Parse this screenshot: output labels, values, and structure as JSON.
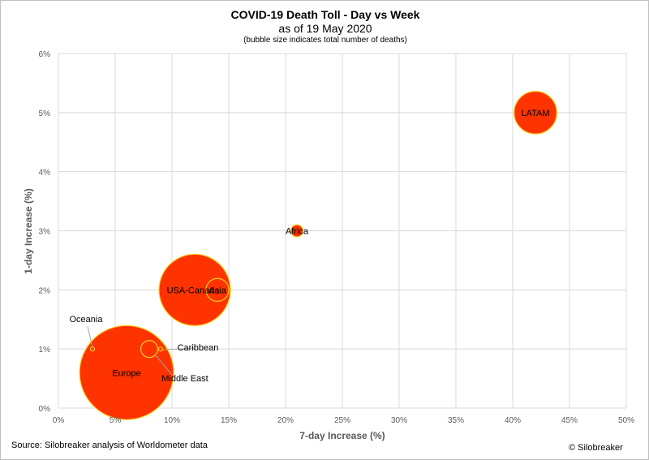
{
  "chart_data": {
    "type": "scatter",
    "title": "COVID-19 Death Toll - Day vs Week",
    "subtitle": "as of 19 May 2020",
    "note": "(bubble size indicates total number of deaths)",
    "xlabel": "7-day Increase (%)",
    "ylabel": "1-day Increase (%)",
    "xlim": [
      0,
      50
    ],
    "ylim": [
      0,
      6
    ],
    "x_ticks": [
      "0%",
      "5%",
      "10%",
      "15%",
      "20%",
      "25%",
      "30%",
      "35%",
      "40%",
      "45%",
      "50%"
    ],
    "y_ticks": [
      "0%",
      "1%",
      "2%",
      "3%",
      "4%",
      "5%",
      "6%"
    ],
    "grid": true,
    "bubble_size_meaning": "total number of deaths",
    "bubble_fill": "#ff3300",
    "bubble_stroke": "#ffd21f",
    "points": [
      {
        "label": "Europe",
        "x": 6,
        "y": 0.6,
        "size": 170000
      },
      {
        "label": "USA-Canada",
        "x": 12,
        "y": 2.0,
        "size": 98000
      },
      {
        "label": "LATAM",
        "x": 42,
        "y": 5.0,
        "size": 35000
      },
      {
        "label": "Asia",
        "x": 14,
        "y": 2.0,
        "size": 10000
      },
      {
        "label": "Middle East",
        "x": 8,
        "y": 1.0,
        "size": 5500
      },
      {
        "label": "Africa",
        "x": 21,
        "y": 3.0,
        "size": 2800
      },
      {
        "label": "Caribbean",
        "x": 9,
        "y": 1.0,
        "size": 150
      },
      {
        "label": "Oceania",
        "x": 3,
        "y": 1.0,
        "size": 50
      }
    ]
  },
  "footer": {
    "source": "Source: Silobreaker analysis of Worldometer data",
    "copyright": "© Silobreaker"
  }
}
